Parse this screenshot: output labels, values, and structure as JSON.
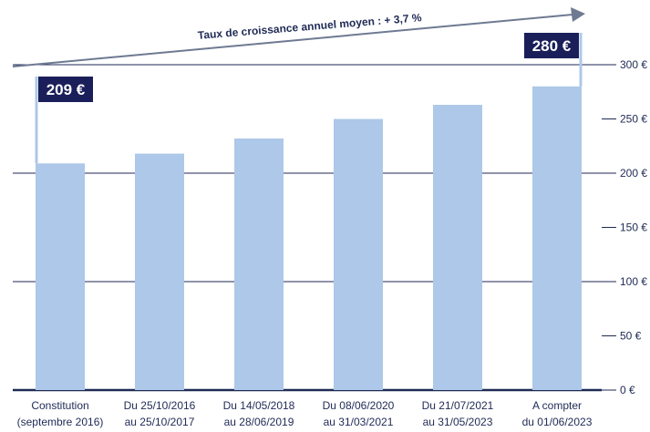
{
  "chart_data": {
    "type": "bar",
    "categories": [
      [
        "Constitution",
        "(septembre 2016)"
      ],
      [
        "Du 25/10/2016",
        "au 25/10/2017"
      ],
      [
        "Du 14/05/2018",
        "au 28/06/2019"
      ],
      [
        "Du 08/06/2020",
        "au 31/03/2021"
      ],
      [
        "Du 21/07/2021",
        "au 31/05/2023"
      ],
      [
        "A compter",
        "du 01/06/2023"
      ]
    ],
    "values": [
      209,
      218,
      232,
      250,
      263,
      280
    ],
    "ylim": [
      0,
      300
    ],
    "yticks": [
      0,
      50,
      100,
      150,
      200,
      250,
      300
    ],
    "ytick_labels": [
      "0 €",
      "50 €",
      "100 €",
      "150 €",
      "200 €",
      "250 €",
      "300 €"
    ],
    "gridlines": [
      0,
      100,
      200,
      300
    ],
    "axis_side": "right",
    "callouts": [
      {
        "label": "209 €",
        "bar_index": 0
      },
      {
        "label": "280 €",
        "bar_index": 5
      }
    ],
    "growth_annotation": "Taux de croissance annuel moyen : + 3,7 %"
  },
  "colors": {
    "bar": "#adc8e8",
    "callout_bg": "#1a1f5a",
    "text": "#1f2a55",
    "grid": "#1f2a55",
    "arrow": "#6e7a92"
  }
}
